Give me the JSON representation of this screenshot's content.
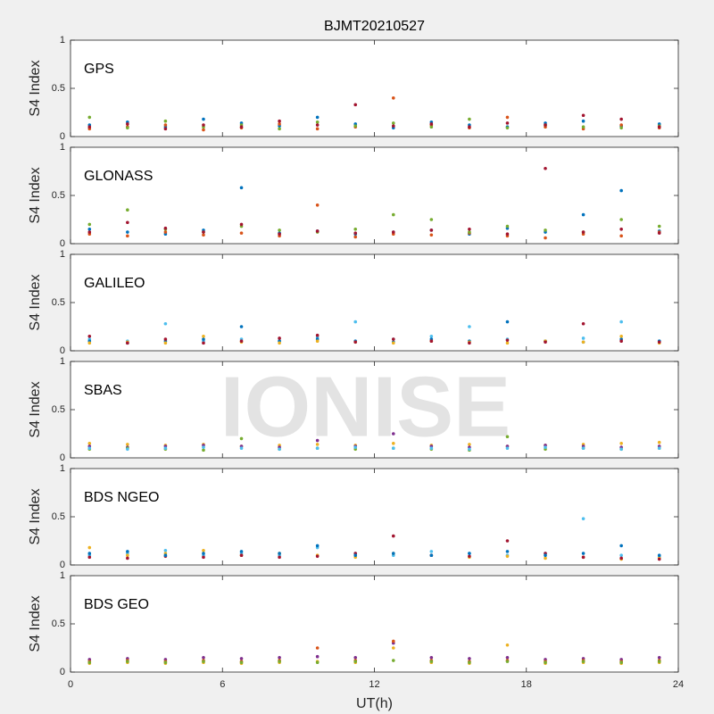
{
  "watermark": "IONISE",
  "chart_data": [
    {
      "type": "scatter",
      "title": "BJMT20210527",
      "annotation": "GPS",
      "ylabel": "S4 Index",
      "xlim": [
        0,
        24
      ],
      "xticks": [
        0,
        6,
        12,
        18,
        24
      ],
      "show_xtick_labels": false,
      "ylim": [
        0,
        1
      ],
      "yticks": [
        0,
        0.5,
        1
      ],
      "x": [
        0.75,
        2.25,
        3.75,
        5.25,
        6.75,
        8.25,
        9.75,
        11.25,
        12.75,
        14.25,
        15.75,
        17.25,
        18.75,
        20.25,
        21.75,
        23.25
      ],
      "series": [
        {
          "name": "s1",
          "color": "#0072BD",
          "values": [
            0.12,
            0.15,
            0.1,
            0.18,
            0.14,
            0.11,
            0.2,
            0.13,
            0.09,
            0.15,
            0.12,
            0.1,
            0.14,
            0.16,
            0.11,
            0.13
          ]
        },
        {
          "name": "s2",
          "color": "#D95319",
          "values": [
            0.08,
            0.1,
            0.12,
            0.07,
            0.09,
            0.13,
            0.08,
            0.1,
            0.4,
            0.12,
            0.09,
            0.2,
            0.1,
            0.08,
            0.12,
            0.09
          ]
        },
        {
          "name": "s3",
          "color": "#77AC30",
          "values": [
            0.2,
            0.09,
            0.16,
            0.1,
            0.12,
            0.08,
            0.15,
            0.11,
            0.14,
            0.1,
            0.18,
            0.09,
            0.12,
            0.1,
            0.09,
            0.11
          ]
        },
        {
          "name": "s4",
          "color": "#A2142F",
          "values": [
            0.1,
            0.13,
            0.08,
            0.12,
            0.1,
            0.16,
            0.12,
            0.33,
            0.11,
            0.13,
            0.1,
            0.14,
            0.12,
            0.22,
            0.18,
            0.1
          ]
        }
      ]
    },
    {
      "type": "scatter",
      "annotation": "GLONASS",
      "ylabel": "S4 Index",
      "xlim": [
        0,
        24
      ],
      "xticks": [
        0,
        6,
        12,
        18,
        24
      ],
      "show_xtick_labels": false,
      "ylim": [
        0,
        1
      ],
      "yticks": [
        0,
        0.5,
        1
      ],
      "x": [
        0.75,
        2.25,
        3.75,
        5.25,
        6.75,
        8.25,
        9.75,
        11.25,
        12.75,
        14.25,
        15.75,
        17.25,
        18.75,
        20.25,
        21.75,
        23.25
      ],
      "series": [
        {
          "name": "s1",
          "color": "#0072BD",
          "values": [
            0.15,
            0.12,
            0.1,
            0.14,
            0.58,
            0.11,
            0.13,
            0.1,
            0.12,
            0.14,
            0.1,
            0.16,
            0.12,
            0.3,
            0.55,
            0.13
          ]
        },
        {
          "name": "s2",
          "color": "#D95319",
          "values": [
            0.1,
            0.08,
            0.12,
            0.09,
            0.11,
            0.08,
            0.4,
            0.07,
            0.1,
            0.09,
            0.11,
            0.08,
            0.06,
            0.1,
            0.08,
            0.12
          ]
        },
        {
          "name": "s3",
          "color": "#77AC30",
          "values": [
            0.2,
            0.35,
            0.15,
            0.12,
            0.18,
            0.14,
            0.12,
            0.15,
            0.3,
            0.25,
            0.12,
            0.18,
            0.14,
            0.12,
            0.25,
            0.18
          ]
        },
        {
          "name": "s4",
          "color": "#A2142F",
          "values": [
            0.12,
            0.22,
            0.16,
            0.12,
            0.2,
            0.1,
            0.13,
            0.11,
            0.12,
            0.14,
            0.15,
            0.1,
            0.78,
            0.12,
            0.15,
            0.11
          ]
        }
      ]
    },
    {
      "type": "scatter",
      "annotation": "GALILEO",
      "ylabel": "S4 Index",
      "xlim": [
        0,
        24
      ],
      "xticks": [
        0,
        6,
        12,
        18,
        24
      ],
      "show_xtick_labels": false,
      "ylim": [
        0,
        1
      ],
      "yticks": [
        0,
        0.5,
        1
      ],
      "x": [
        0.75,
        2.25,
        3.75,
        5.25,
        6.75,
        8.25,
        9.75,
        11.25,
        12.75,
        14.25,
        15.75,
        17.25,
        18.75,
        20.25,
        21.75,
        23.25
      ],
      "series": [
        {
          "name": "s1",
          "color": "#4DBEEE",
          "values": [
            0.12,
            0.1,
            0.28,
            0.1,
            0.12,
            0.1,
            0.14,
            0.3,
            0.12,
            0.15,
            0.25,
            0.12,
            0.1,
            0.13,
            0.3,
            0.1
          ]
        },
        {
          "name": "s2",
          "color": "#0072BD",
          "values": [
            0.1,
            0.08,
            0.1,
            0.12,
            0.25,
            0.1,
            0.12,
            0.1,
            0.09,
            0.12,
            0.1,
            0.3,
            0.1,
            0.09,
            0.12,
            0.1
          ]
        },
        {
          "name": "s3",
          "color": "#EDB120",
          "values": [
            0.08,
            0.09,
            0.08,
            0.15,
            0.09,
            0.08,
            0.1,
            0.09,
            0.08,
            0.1,
            0.09,
            0.08,
            0.1,
            0.09,
            0.15,
            0.08
          ]
        },
        {
          "name": "s4",
          "color": "#A2142F",
          "values": [
            0.15,
            0.08,
            0.12,
            0.08,
            0.1,
            0.13,
            0.16,
            0.09,
            0.12,
            0.1,
            0.08,
            0.11,
            0.09,
            0.28,
            0.1,
            0.09
          ]
        }
      ]
    },
    {
      "type": "scatter",
      "annotation": "SBAS",
      "ylabel": "S4 Index",
      "xlim": [
        0,
        24
      ],
      "xticks": [
        0,
        6,
        12,
        18,
        24
      ],
      "show_xtick_labels": false,
      "ylim": [
        0,
        1
      ],
      "yticks": [
        0,
        0.5,
        1
      ],
      "x": [
        0.75,
        2.25,
        3.75,
        5.25,
        6.75,
        8.25,
        9.75,
        11.25,
        12.75,
        14.25,
        15.75,
        17.25,
        18.75,
        20.25,
        21.75,
        23.25
      ],
      "series": [
        {
          "name": "s1",
          "color": "#EDB120",
          "values": [
            0.15,
            0.14,
            0.13,
            0.14,
            0.12,
            0.13,
            0.14,
            0.13,
            0.15,
            0.13,
            0.14,
            0.12,
            0.13,
            0.14,
            0.15,
            0.16
          ]
        },
        {
          "name": "s2",
          "color": "#7E2F8E",
          "values": [
            0.12,
            0.11,
            0.12,
            0.13,
            0.12,
            0.11,
            0.18,
            0.12,
            0.25,
            0.12,
            0.11,
            0.12,
            0.13,
            0.12,
            0.11,
            0.12
          ]
        },
        {
          "name": "s3",
          "color": "#77AC30",
          "values": [
            0.09,
            0.1,
            0.09,
            0.08,
            0.2,
            0.09,
            0.1,
            0.09,
            0.1,
            0.09,
            0.08,
            0.22,
            0.09,
            0.1,
            0.09,
            0.1
          ]
        },
        {
          "name": "s4",
          "color": "#4DBEEE",
          "values": [
            0.1,
            0.09,
            0.1,
            0.11,
            0.1,
            0.09,
            0.1,
            0.11,
            0.1,
            0.1,
            0.09,
            0.1,
            0.11,
            0.1,
            0.09,
            0.1
          ]
        }
      ]
    },
    {
      "type": "scatter",
      "annotation": "BDS NGEO",
      "ylabel": "S4 Index",
      "xlim": [
        0,
        24
      ],
      "xticks": [
        0,
        6,
        12,
        18,
        24
      ],
      "show_xtick_labels": false,
      "ylim": [
        0,
        1
      ],
      "yticks": [
        0,
        0.5,
        1
      ],
      "x": [
        0.75,
        2.25,
        3.75,
        5.25,
        6.75,
        8.25,
        9.75,
        11.25,
        12.75,
        14.25,
        15.75,
        17.25,
        18.75,
        20.25,
        21.75,
        23.25
      ],
      "series": [
        {
          "name": "s1",
          "color": "#4DBEEE",
          "values": [
            0.1,
            0.12,
            0.15,
            0.1,
            0.12,
            0.1,
            0.18,
            0.12,
            0.1,
            0.14,
            0.12,
            0.1,
            0.12,
            0.48,
            0.1,
            0.08
          ]
        },
        {
          "name": "s2",
          "color": "#EDB120",
          "values": [
            0.18,
            0.1,
            0.12,
            0.15,
            0.1,
            0.12,
            0.1,
            0.08,
            0.12,
            0.1,
            0.08,
            0.09,
            0.07,
            0.08,
            0.06,
            0.07
          ]
        },
        {
          "name": "s3",
          "color": "#A2142F",
          "values": [
            0.08,
            0.07,
            0.09,
            0.08,
            0.1,
            0.08,
            0.09,
            0.12,
            0.3,
            0.1,
            0.09,
            0.25,
            0.12,
            0.08,
            0.07,
            0.06
          ]
        },
        {
          "name": "s4",
          "color": "#0072BD",
          "values": [
            0.12,
            0.14,
            0.1,
            0.12,
            0.14,
            0.12,
            0.2,
            0.1,
            0.12,
            0.1,
            0.12,
            0.14,
            0.1,
            0.12,
            0.2,
            0.1
          ]
        }
      ]
    },
    {
      "type": "scatter",
      "annotation": "BDS GEO",
      "ylabel": "S4 Index",
      "xlabel": "UT(h)",
      "xlim": [
        0,
        24
      ],
      "xticks": [
        0,
        6,
        12,
        18,
        24
      ],
      "show_xtick_labels": true,
      "ylim": [
        0,
        1
      ],
      "yticks": [
        0,
        0.5,
        1
      ],
      "x": [
        0.75,
        2.25,
        3.75,
        5.25,
        6.75,
        8.25,
        9.75,
        11.25,
        12.75,
        14.25,
        15.75,
        17.25,
        18.75,
        20.25,
        21.75,
        23.25
      ],
      "series": [
        {
          "name": "s1",
          "color": "#7E2F8E",
          "values": [
            0.13,
            0.14,
            0.13,
            0.15,
            0.14,
            0.15,
            0.16,
            0.15,
            0.3,
            0.15,
            0.14,
            0.15,
            0.13,
            0.14,
            0.13,
            0.15
          ]
        },
        {
          "name": "s2",
          "color": "#EDB120",
          "values": [
            0.09,
            0.1,
            0.09,
            0.1,
            0.09,
            0.1,
            0.11,
            0.1,
            0.25,
            0.1,
            0.09,
            0.28,
            0.09,
            0.1,
            0.09,
            0.1
          ]
        },
        {
          "name": "s3",
          "color": "#D95319",
          "values": [
            0.11,
            0.12,
            0.11,
            0.12,
            0.11,
            0.12,
            0.25,
            0.12,
            0.32,
            0.12,
            0.11,
            0.12,
            0.11,
            0.12,
            0.11,
            0.12
          ]
        },
        {
          "name": "s4",
          "color": "#77AC30",
          "values": [
            0.1,
            0.11,
            0.1,
            0.11,
            0.1,
            0.11,
            0.1,
            0.11,
            0.12,
            0.11,
            0.1,
            0.11,
            0.1,
            0.11,
            0.1,
            0.11
          ]
        }
      ]
    }
  ]
}
